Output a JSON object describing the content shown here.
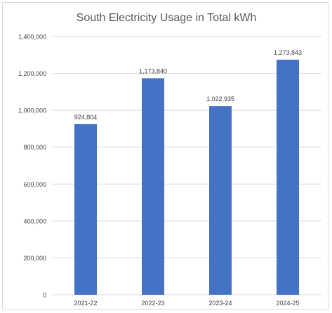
{
  "chart_data": {
    "type": "bar",
    "title": "South Electricity Usage in Total kWh",
    "categories": [
      "2021-22",
      "2022-23",
      "2023-24",
      "2024-25"
    ],
    "values": [
      924804,
      1173840,
      1022935,
      1273843
    ],
    "data_labels": [
      "924,804",
      "1,173,840",
      "1,022,935",
      "1,273,843"
    ],
    "yticks": [
      0,
      200000,
      400000,
      600000,
      800000,
      1000000,
      1200000,
      1400000
    ],
    "ytick_labels": [
      "0",
      "200,000",
      "400,000",
      "600,000",
      "800,000",
      "1,000,000",
      "1,200,000",
      "1,400,000"
    ],
    "ylim": [
      0,
      1400000
    ],
    "xlabel": "",
    "ylabel": "",
    "grid": true,
    "legend": "none",
    "bar_color": "#4472C4",
    "grid_color": "#d9d9d9",
    "text_color": "#404040",
    "title_color": "#595959"
  }
}
